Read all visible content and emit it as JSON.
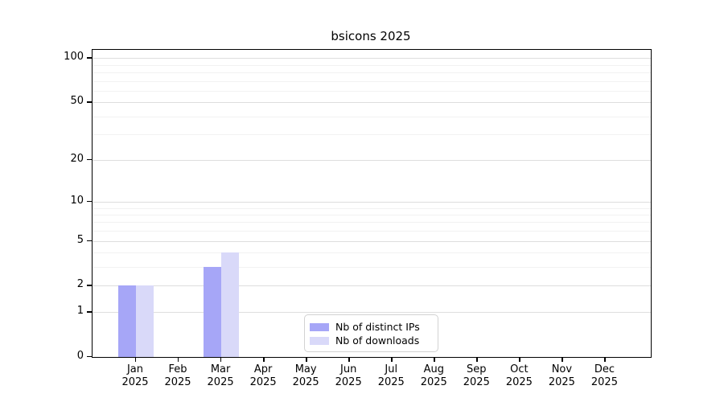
{
  "figure": {
    "background": "#ffffff"
  },
  "chart_data": {
    "type": "bar",
    "title": "bsicons 2025",
    "categories": [
      "Jan",
      "Feb",
      "Mar",
      "Apr",
      "May",
      "Jun",
      "Jul",
      "Aug",
      "Sep",
      "Oct",
      "Nov",
      "Dec"
    ],
    "year": "2025",
    "series": [
      {
        "name": "Nb of distinct IPs",
        "color": "#a6a6f7",
        "values": [
          2,
          0,
          3,
          0,
          0,
          0,
          0,
          0,
          0,
          0,
          0,
          0
        ]
      },
      {
        "name": "Nb of downloads",
        "color": "#d9d9f9",
        "values": [
          2,
          0,
          4,
          0,
          0,
          0,
          0,
          0,
          0,
          0,
          0,
          0
        ]
      }
    ],
    "xlabel": "",
    "ylabel": "",
    "y_axis": {
      "scale": "log10(1+x)",
      "tick_values": [
        0,
        1,
        2,
        5,
        10,
        20,
        50,
        100
      ],
      "minor_gridline_values": [
        3,
        4,
        6,
        7,
        8,
        9,
        30,
        40,
        60,
        70,
        80,
        90
      ],
      "ylim": [
        0,
        113
      ]
    },
    "grid": "horizontal",
    "legend": {
      "position": "inside-bottom-center",
      "entries": [
        "Nb of distinct IPs",
        "Nb of downloads"
      ]
    }
  }
}
